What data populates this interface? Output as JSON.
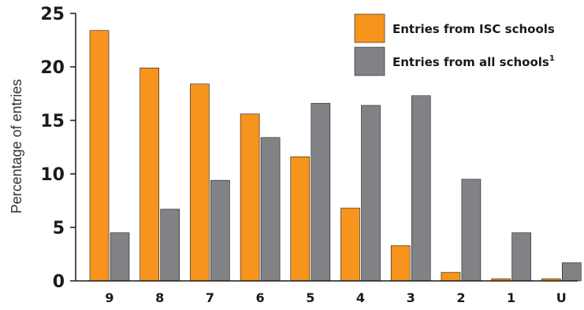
{
  "chart_data": {
    "type": "bar",
    "categories": [
      "9",
      "8",
      "7",
      "6",
      "5",
      "4",
      "3",
      "2",
      "1",
      "U"
    ],
    "series": [
      {
        "name": "Entries from ISC schools",
        "values": [
          23.4,
          19.9,
          18.4,
          15.6,
          11.6,
          6.8,
          3.3,
          0.8,
          0.2,
          0.2
        ],
        "color": "#f7941d"
      },
      {
        "name": "Entries from all schools",
        "name_superscript": "1",
        "values": [
          4.5,
          6.7,
          9.4,
          13.4,
          16.6,
          16.4,
          17.3,
          9.5,
          4.5,
          1.7
        ],
        "color": "#808285"
      }
    ],
    "ylabel": "Percentage of entries",
    "xlabel": "",
    "ylim": [
      0,
      25
    ],
    "yticks": [
      "0",
      "5",
      "10",
      "15",
      "20",
      "25"
    ],
    "grid": false,
    "legend_position": "top-right"
  }
}
